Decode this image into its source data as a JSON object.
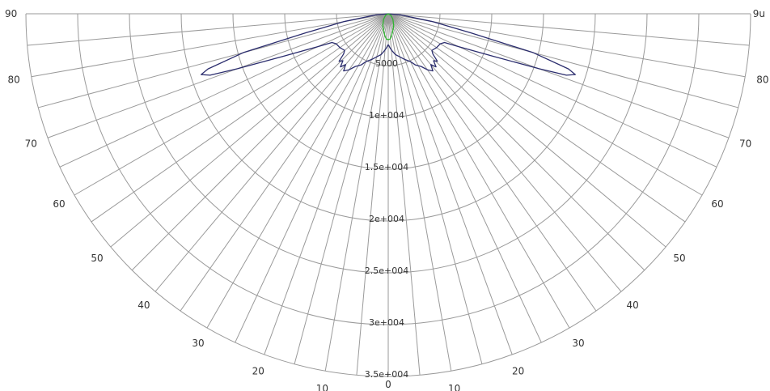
{
  "chart_data": {
    "type": "polar",
    "title": "",
    "angle_range": [
      -90,
      90
    ],
    "angle_step": 5,
    "angle_labels": [
      {
        "angle": -90,
        "text": "90"
      },
      {
        "angle": -80,
        "text": "80"
      },
      {
        "angle": -70,
        "text": "70"
      },
      {
        "angle": -60,
        "text": "60"
      },
      {
        "angle": -50,
        "text": "50"
      },
      {
        "angle": -40,
        "text": "40"
      },
      {
        "angle": -30,
        "text": "30"
      },
      {
        "angle": -20,
        "text": "20"
      },
      {
        "angle": -10,
        "text": "10"
      },
      {
        "angle": 0,
        "text": "0"
      },
      {
        "angle": 10,
        "text": "10"
      },
      {
        "angle": 20,
        "text": "20"
      },
      {
        "angle": 30,
        "text": "30"
      },
      {
        "angle": 40,
        "text": "40"
      },
      {
        "angle": 50,
        "text": "50"
      },
      {
        "angle": 60,
        "text": "60"
      },
      {
        "angle": 70,
        "text": "70"
      },
      {
        "angle": 80,
        "text": "80"
      },
      {
        "angle": 90,
        "text": "9u"
      }
    ],
    "radial_max": 35000,
    "radial_ticks": [
      {
        "value": 5000,
        "text": "5000"
      },
      {
        "value": 10000,
        "text": "1e+004"
      },
      {
        "value": 15000,
        "text": "1.5e+004"
      },
      {
        "value": 20000,
        "text": "2e+004"
      },
      {
        "value": 25000,
        "text": "2.5e+004"
      },
      {
        "value": 30000,
        "text": "3e+004"
      },
      {
        "value": 35000,
        "text": "3.5e+004"
      }
    ],
    "grid": true,
    "series": [
      {
        "color": "#2b2d6e",
        "points": [
          [
            -90,
            0
          ],
          [
            -85,
            1200
          ],
          [
            -80,
            4300
          ],
          [
            -77,
            8200
          ],
          [
            -75,
            14500
          ],
          [
            -73,
            18200
          ],
          [
            -72,
            19000
          ],
          [
            -71,
            18200
          ],
          [
            -70,
            15500
          ],
          [
            -68,
            11000
          ],
          [
            -65,
            7500
          ],
          [
            -63,
            6100
          ],
          [
            -60,
            5800
          ],
          [
            -55,
            5700
          ],
          [
            -50,
            5500
          ],
          [
            -48,
            5800
          ],
          [
            -46,
            6600
          ],
          [
            -44,
            6300
          ],
          [
            -42,
            6900
          ],
          [
            -40,
            6400
          ],
          [
            -38,
            7000
          ],
          [
            -35,
            6600
          ],
          [
            -32,
            6000
          ],
          [
            -28,
            5600
          ],
          [
            -25,
            5100
          ],
          [
            -20,
            4700
          ],
          [
            -15,
            4300
          ],
          [
            -10,
            4000
          ],
          [
            -6,
            3600
          ],
          [
            -3,
            3300
          ],
          [
            -1,
            3050
          ],
          [
            0,
            3000
          ],
          [
            1,
            3050
          ],
          [
            3,
            3300
          ],
          [
            6,
            3600
          ],
          [
            10,
            4000
          ],
          [
            15,
            4300
          ],
          [
            20,
            4700
          ],
          [
            25,
            5100
          ],
          [
            28,
            5600
          ],
          [
            32,
            6000
          ],
          [
            35,
            6600
          ],
          [
            38,
            7000
          ],
          [
            40,
            6400
          ],
          [
            42,
            6900
          ],
          [
            44,
            6300
          ],
          [
            46,
            6600
          ],
          [
            48,
            5800
          ],
          [
            50,
            5500
          ],
          [
            55,
            5700
          ],
          [
            60,
            5800
          ],
          [
            63,
            6100
          ],
          [
            65,
            7500
          ],
          [
            68,
            11000
          ],
          [
            70,
            15500
          ],
          [
            71,
            18200
          ],
          [
            72,
            19000
          ],
          [
            73,
            18200
          ],
          [
            75,
            14500
          ],
          [
            77,
            8200
          ],
          [
            80,
            4300
          ],
          [
            85,
            1200
          ],
          [
            90,
            0
          ]
        ]
      },
      {
        "color": "#2fb52f",
        "points": [
          [
            -90,
            0
          ],
          [
            -60,
            300
          ],
          [
            -40,
            700
          ],
          [
            -25,
            1250
          ],
          [
            -15,
            1700
          ],
          [
            -8,
            2200
          ],
          [
            -4,
            2450
          ],
          [
            0,
            2500
          ],
          [
            4,
            2450
          ],
          [
            8,
            2200
          ],
          [
            15,
            1700
          ],
          [
            25,
            1250
          ],
          [
            40,
            700
          ],
          [
            60,
            300
          ],
          [
            90,
            0
          ]
        ]
      }
    ]
  }
}
